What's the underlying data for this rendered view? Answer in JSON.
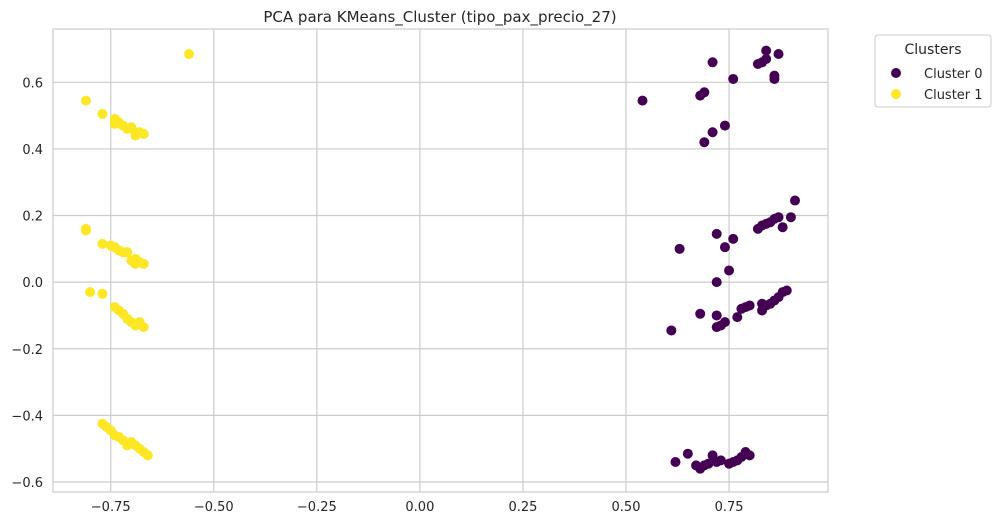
{
  "chart_data": {
    "type": "scatter",
    "title": "PCA para KMeans_Cluster (tipo_pax_precio_27)",
    "xlabel": "",
    "ylabel": "",
    "xlim": [
      -0.89,
      0.99
    ],
    "ylim": [
      -0.63,
      0.76
    ],
    "x_ticks": [
      -0.75,
      -0.5,
      -0.25,
      0.0,
      0.25,
      0.5,
      0.75
    ],
    "x_tick_labels": [
      "−0.75",
      "−0.50",
      "−0.25",
      "0.00",
      "0.25",
      "0.50",
      "0.75"
    ],
    "y_ticks": [
      -0.6,
      -0.4,
      -0.2,
      0.0,
      0.2,
      0.4,
      0.6
    ],
    "y_tick_labels": [
      "−0.6",
      "−0.4",
      "−0.2",
      "0.0",
      "0.2",
      "0.4",
      "0.6"
    ],
    "grid": true,
    "legend": {
      "title": "Clusters",
      "placement": "outside-upper-right"
    },
    "series": [
      {
        "name": "Cluster 0",
        "color": "#440154",
        "points": [
          [
            0.54,
            0.545
          ],
          [
            0.68,
            0.56
          ],
          [
            0.69,
            0.57
          ],
          [
            0.71,
            0.66
          ],
          [
            0.76,
            0.61
          ],
          [
            0.82,
            0.655
          ],
          [
            0.83,
            0.66
          ],
          [
            0.84,
            0.67
          ],
          [
            0.84,
            0.695
          ],
          [
            0.86,
            0.61
          ],
          [
            0.86,
            0.62
          ],
          [
            0.87,
            0.685
          ],
          [
            0.69,
            0.42
          ],
          [
            0.71,
            0.45
          ],
          [
            0.74,
            0.47
          ],
          [
            0.63,
            0.1
          ],
          [
            0.72,
            0.145
          ],
          [
            0.74,
            0.105
          ],
          [
            0.76,
            0.13
          ],
          [
            0.82,
            0.16
          ],
          [
            0.83,
            0.17
          ],
          [
            0.84,
            0.175
          ],
          [
            0.85,
            0.18
          ],
          [
            0.86,
            0.19
          ],
          [
            0.87,
            0.195
          ],
          [
            0.88,
            0.165
          ],
          [
            0.9,
            0.195
          ],
          [
            0.91,
            0.245
          ],
          [
            0.75,
            0.035
          ],
          [
            0.72,
            0.0
          ],
          [
            0.61,
            -0.145
          ],
          [
            0.68,
            -0.095
          ],
          [
            0.72,
            -0.135
          ],
          [
            0.72,
            -0.1
          ],
          [
            0.73,
            -0.13
          ],
          [
            0.74,
            -0.12
          ],
          [
            0.77,
            -0.105
          ],
          [
            0.78,
            -0.08
          ],
          [
            0.79,
            -0.075
          ],
          [
            0.8,
            -0.07
          ],
          [
            0.83,
            -0.085
          ],
          [
            0.83,
            -0.065
          ],
          [
            0.84,
            -0.07
          ],
          [
            0.85,
            -0.065
          ],
          [
            0.86,
            -0.055
          ],
          [
            0.87,
            -0.045
          ],
          [
            0.88,
            -0.03
          ],
          [
            0.89,
            -0.025
          ],
          [
            0.62,
            -0.54
          ],
          [
            0.65,
            -0.515
          ],
          [
            0.67,
            -0.55
          ],
          [
            0.68,
            -0.56
          ],
          [
            0.69,
            -0.55
          ],
          [
            0.7,
            -0.545
          ],
          [
            0.71,
            -0.52
          ],
          [
            0.72,
            -0.54
          ],
          [
            0.73,
            -0.535
          ],
          [
            0.75,
            -0.545
          ],
          [
            0.76,
            -0.54
          ],
          [
            0.77,
            -0.535
          ],
          [
            0.78,
            -0.525
          ],
          [
            0.79,
            -0.51
          ],
          [
            0.8,
            -0.52
          ]
        ]
      },
      {
        "name": "Cluster 1",
        "color": "#fde725",
        "points": [
          [
            -0.56,
            0.685
          ],
          [
            -0.81,
            0.545
          ],
          [
            -0.77,
            0.505
          ],
          [
            -0.74,
            0.49
          ],
          [
            -0.74,
            0.475
          ],
          [
            -0.73,
            0.48
          ],
          [
            -0.72,
            0.47
          ],
          [
            -0.71,
            0.46
          ],
          [
            -0.7,
            0.465
          ],
          [
            -0.69,
            0.45
          ],
          [
            -0.69,
            0.44
          ],
          [
            -0.68,
            0.45
          ],
          [
            -0.67,
            0.445
          ],
          [
            -0.81,
            0.16
          ],
          [
            -0.81,
            0.155
          ],
          [
            -0.77,
            0.115
          ],
          [
            -0.75,
            0.11
          ],
          [
            -0.74,
            0.105
          ],
          [
            -0.73,
            0.095
          ],
          [
            -0.72,
            0.09
          ],
          [
            -0.71,
            0.09
          ],
          [
            -0.7,
            0.065
          ],
          [
            -0.69,
            0.055
          ],
          [
            -0.69,
            0.07
          ],
          [
            -0.68,
            0.06
          ],
          [
            -0.67,
            0.055
          ],
          [
            -0.8,
            -0.03
          ],
          [
            -0.77,
            -0.035
          ],
          [
            -0.74,
            -0.075
          ],
          [
            -0.73,
            -0.085
          ],
          [
            -0.72,
            -0.095
          ],
          [
            -0.71,
            -0.11
          ],
          [
            -0.7,
            -0.12
          ],
          [
            -0.69,
            -0.125
          ],
          [
            -0.69,
            -0.13
          ],
          [
            -0.68,
            -0.12
          ],
          [
            -0.67,
            -0.135
          ],
          [
            -0.77,
            -0.425
          ],
          [
            -0.76,
            -0.435
          ],
          [
            -0.75,
            -0.445
          ],
          [
            -0.74,
            -0.46
          ],
          [
            -0.73,
            -0.465
          ],
          [
            -0.72,
            -0.475
          ],
          [
            -0.71,
            -0.49
          ],
          [
            -0.7,
            -0.48
          ],
          [
            -0.69,
            -0.49
          ],
          [
            -0.68,
            -0.5
          ],
          [
            -0.67,
            -0.51
          ],
          [
            -0.66,
            -0.52
          ]
        ]
      }
    ]
  }
}
